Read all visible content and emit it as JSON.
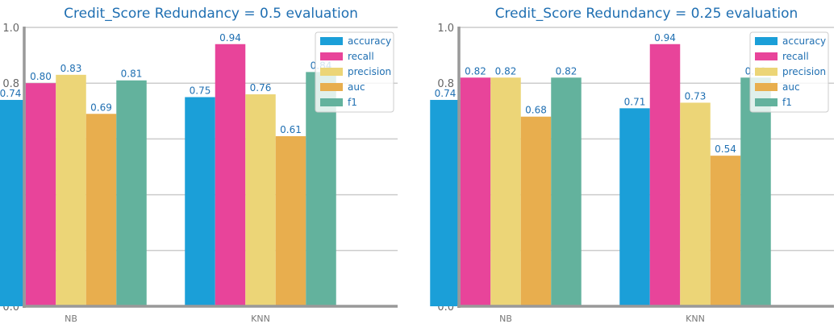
{
  "chart_data": [
    {
      "type": "bar",
      "title": "Credit_Score Redundancy = 0.5 evaluation",
      "xlabel": "",
      "ylabel": "",
      "ylim": [
        0,
        1.0
      ],
      "yticks": [
        "0.0",
        "0.2",
        "0.4",
        "0.6",
        "0.8",
        "1.0"
      ],
      "grid": true,
      "legend_position": "top-right",
      "categories": [
        "NB",
        "KNN"
      ],
      "series": [
        {
          "name": "accuracy",
          "color": "#1b9fd8",
          "values": [
            0.74,
            0.75
          ],
          "labels": [
            "0.74",
            "0.75"
          ]
        },
        {
          "name": "recall",
          "color": "#e8449a",
          "values": [
            0.8,
            0.94
          ],
          "labels": [
            "0.80",
            "0.94"
          ]
        },
        {
          "name": "precision",
          "color": "#ecd577",
          "values": [
            0.83,
            0.76
          ],
          "labels": [
            "0.83",
            "0.76"
          ]
        },
        {
          "name": "auc",
          "color": "#e8ae4e",
          "values": [
            0.69,
            0.61
          ],
          "labels": [
            "0.69",
            "0.61"
          ]
        },
        {
          "name": "f1",
          "color": "#63b29d",
          "values": [
            0.81,
            0.84
          ],
          "labels": [
            "0.81",
            "0.84"
          ]
        }
      ]
    },
    {
      "type": "bar",
      "title": "Credit_Score Redundancy = 0.25 evaluation",
      "xlabel": "",
      "ylabel": "",
      "ylim": [
        0,
        1.0
      ],
      "yticks": [
        "0.0",
        "0.2",
        "0.4",
        "0.6",
        "0.8",
        "1.0"
      ],
      "grid": true,
      "legend_position": "top-right",
      "categories": [
        "NB",
        "KNN"
      ],
      "series": [
        {
          "name": "accuracy",
          "color": "#1b9fd8",
          "values": [
            0.74,
            0.71
          ],
          "labels": [
            "0.74",
            "0.71"
          ]
        },
        {
          "name": "recall",
          "color": "#e8449a",
          "values": [
            0.82,
            0.94
          ],
          "labels": [
            "0.82",
            "0.94"
          ]
        },
        {
          "name": "precision",
          "color": "#ecd577",
          "values": [
            0.82,
            0.73
          ],
          "labels": [
            "0.82",
            "0.73"
          ]
        },
        {
          "name": "auc",
          "color": "#e8ae4e",
          "values": [
            0.68,
            0.54
          ],
          "labels": [
            "0.68",
            "0.54"
          ]
        },
        {
          "name": "f1",
          "color": "#63b29d",
          "values": [
            0.82,
            0.82
          ],
          "labels": [
            "0.82",
            "0.82"
          ]
        }
      ]
    }
  ]
}
